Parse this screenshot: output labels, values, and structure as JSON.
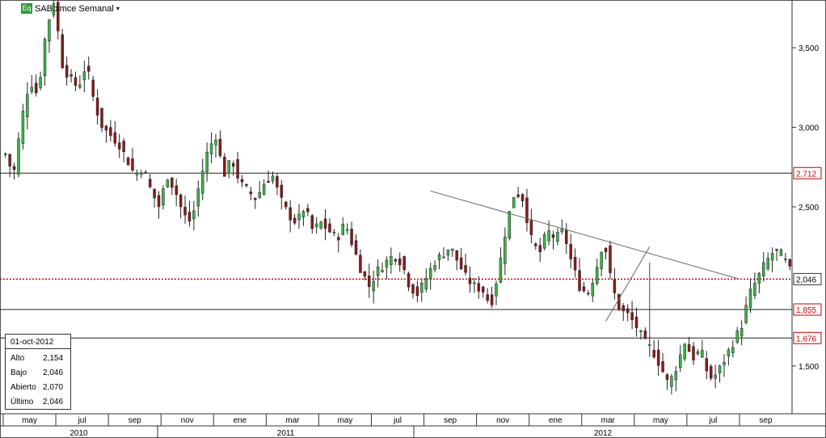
{
  "header": {
    "badge": "Eq",
    "title": "SAB:xmce Semanal",
    "caret": "▾"
  },
  "info_box": {
    "date": "01-oct-2012",
    "rows": [
      {
        "label": "Alto",
        "value": "2,154"
      },
      {
        "label": "Bajo",
        "value": "2,046"
      },
      {
        "label": "Abierto",
        "value": "2,070"
      },
      {
        "label": "Último",
        "value": "2,046"
      }
    ]
  },
  "colors": {
    "up": "#3cb44b",
    "down": "#8b1a1a",
    "price_line": "#cc0000",
    "level_label": "#cc0000"
  },
  "chart_data": {
    "type": "candlestick",
    "title": "SAB:xmce Semanal",
    "ylim": [
      1200,
      3800
    ],
    "yticks": [
      "3,500",
      "3,000",
      "2,500",
      "1,500"
    ],
    "ytick_values": [
      3500,
      3000,
      2500,
      1500
    ],
    "month_labels": [
      "may",
      "jul",
      "sep",
      "nov",
      "ene",
      "mar",
      "may",
      "jul",
      "sep",
      "nov",
      "ene",
      "mar",
      "may",
      "jul",
      "sep"
    ],
    "year_labels": [
      "2010",
      "2011",
      "2012"
    ],
    "levels": [
      {
        "value": 2712,
        "label": "2,712"
      },
      {
        "value": 1855,
        "label": "1,855"
      },
      {
        "value": 1676,
        "label": "1,676"
      }
    ],
    "last_price": {
      "value": 2046,
      "label": "2,046"
    },
    "trendline": {
      "from": {
        "week": 97,
        "price": 2600
      },
      "to": {
        "week": 167,
        "price": 2050
      }
    },
    "projection": {
      "from": {
        "week": 137,
        "price": 1780
      },
      "to": {
        "week": 147,
        "price": 2250
      }
    },
    "grid": "horizontal levels only",
    "closes": [
      2830,
      2700,
      3050,
      3300,
      3200,
      3600,
      3800,
      3400,
      3300,
      3250,
      3400,
      3150,
      3000,
      2950,
      2900,
      2800,
      2700,
      2750,
      2600,
      2500,
      2700,
      2600,
      2450,
      2400,
      2650,
      2850,
      2950,
      2700,
      2800,
      2650,
      2600,
      2550,
      2650,
      2700,
      2550,
      2450,
      2400,
      2500,
      2350,
      2400,
      2350,
      2300,
      2400,
      2250,
      2100,
      2000,
      2100,
      2150,
      2200,
      2150,
      2000,
      1950,
      2050,
      2150,
      2200,
      2250,
      2150,
      2050,
      2000,
      1980,
      1880,
      2100,
      2400,
      2600,
      2550,
      2300,
      2200,
      2350,
      2300,
      2350,
      2150,
      2000,
      1950,
      2100,
      2300,
      2000,
      1850,
      1820,
      1750,
      1650,
      1600,
      1500,
      1380,
      1500,
      1650,
      1550,
      1600,
      1420,
      1450,
      1550,
      1650,
      1750,
      1950,
      2050,
      2150,
      2220,
      2200,
      2100
    ]
  }
}
